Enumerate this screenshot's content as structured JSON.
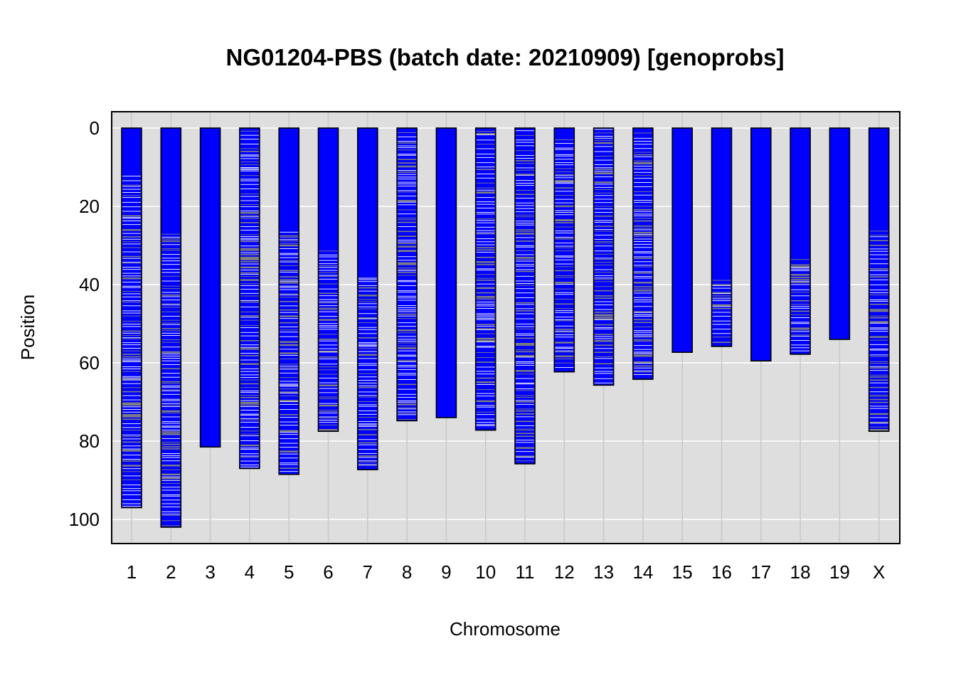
{
  "chart_data": {
    "type": "genotype-map",
    "title": "NG01204-PBS (batch date: 20210909) [genoprobs]",
    "xlabel": "Chromosome",
    "ylabel": "Position",
    "ylim": [
      0,
      105
    ],
    "y_reversed": true,
    "y_ticks": [
      0,
      20,
      40,
      60,
      80,
      100
    ],
    "grid": true,
    "categories": [
      "1",
      "2",
      "3",
      "4",
      "5",
      "6",
      "7",
      "8",
      "9",
      "10",
      "11",
      "12",
      "13",
      "14",
      "15",
      "16",
      "17",
      "18",
      "19",
      "X"
    ],
    "chromosome_lengths": [
      97,
      102,
      81.5,
      87,
      88.5,
      77.5,
      87.3,
      74.8,
      74,
      77.2,
      85.8,
      62.3,
      65.7,
      64.2,
      57.3,
      55.8,
      59.5,
      57.8,
      54,
      77.5
    ],
    "marked_regions_start": [
      11,
      26,
      null,
      0,
      26,
      31,
      37,
      0,
      null,
      0,
      0,
      2.5,
      0,
      0,
      null,
      38,
      null,
      33,
      null,
      25
    ],
    "colors": {
      "genotype_main": "#0000ff",
      "missing": "#ffffff",
      "uncertain": "#7f7f7f",
      "panel_background": "#dedede",
      "grid": "#ffffff",
      "chromosome_gridline": "#c8c8c8"
    }
  }
}
